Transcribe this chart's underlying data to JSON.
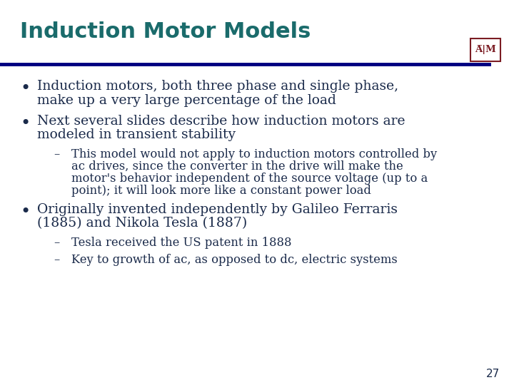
{
  "title": "Induction Motor Models",
  "title_color": "#1a6b6b",
  "title_fontsize": 22,
  "bg_color": "#ffffff",
  "separator_color": "#000080",
  "text_color": "#1a2a4a",
  "page_number": "27",
  "bullet_fontsize": 13.5,
  "sub_fontsize": 11.8,
  "logo_color": "#7b1c23",
  "bullets": [
    {
      "type": "bullet",
      "lines": [
        "Induction motors, both three phase and single phase,",
        "make up a very large percentage of the load"
      ]
    },
    {
      "type": "bullet",
      "lines": [
        "Next several slides describe how induction motors are",
        "modeled in transient stability"
      ]
    },
    {
      "type": "sub",
      "lines": [
        "This model would not apply to induction motors controlled by",
        "ac drives, since the converter in the drive will make the",
        "motor's behavior independent of the source voltage (up to a",
        "point); it will look more like a constant power load"
      ]
    },
    {
      "type": "bullet",
      "lines": [
        "Originally invented independently by Galileo Ferraris",
        "(1885) and Nikola Tesla (1887)"
      ]
    },
    {
      "type": "sub",
      "lines": [
        "Tesla received the US patent in 1888"
      ]
    },
    {
      "type": "sub",
      "lines": [
        "Key to growth of ac, as opposed to dc, electric systems"
      ]
    }
  ]
}
